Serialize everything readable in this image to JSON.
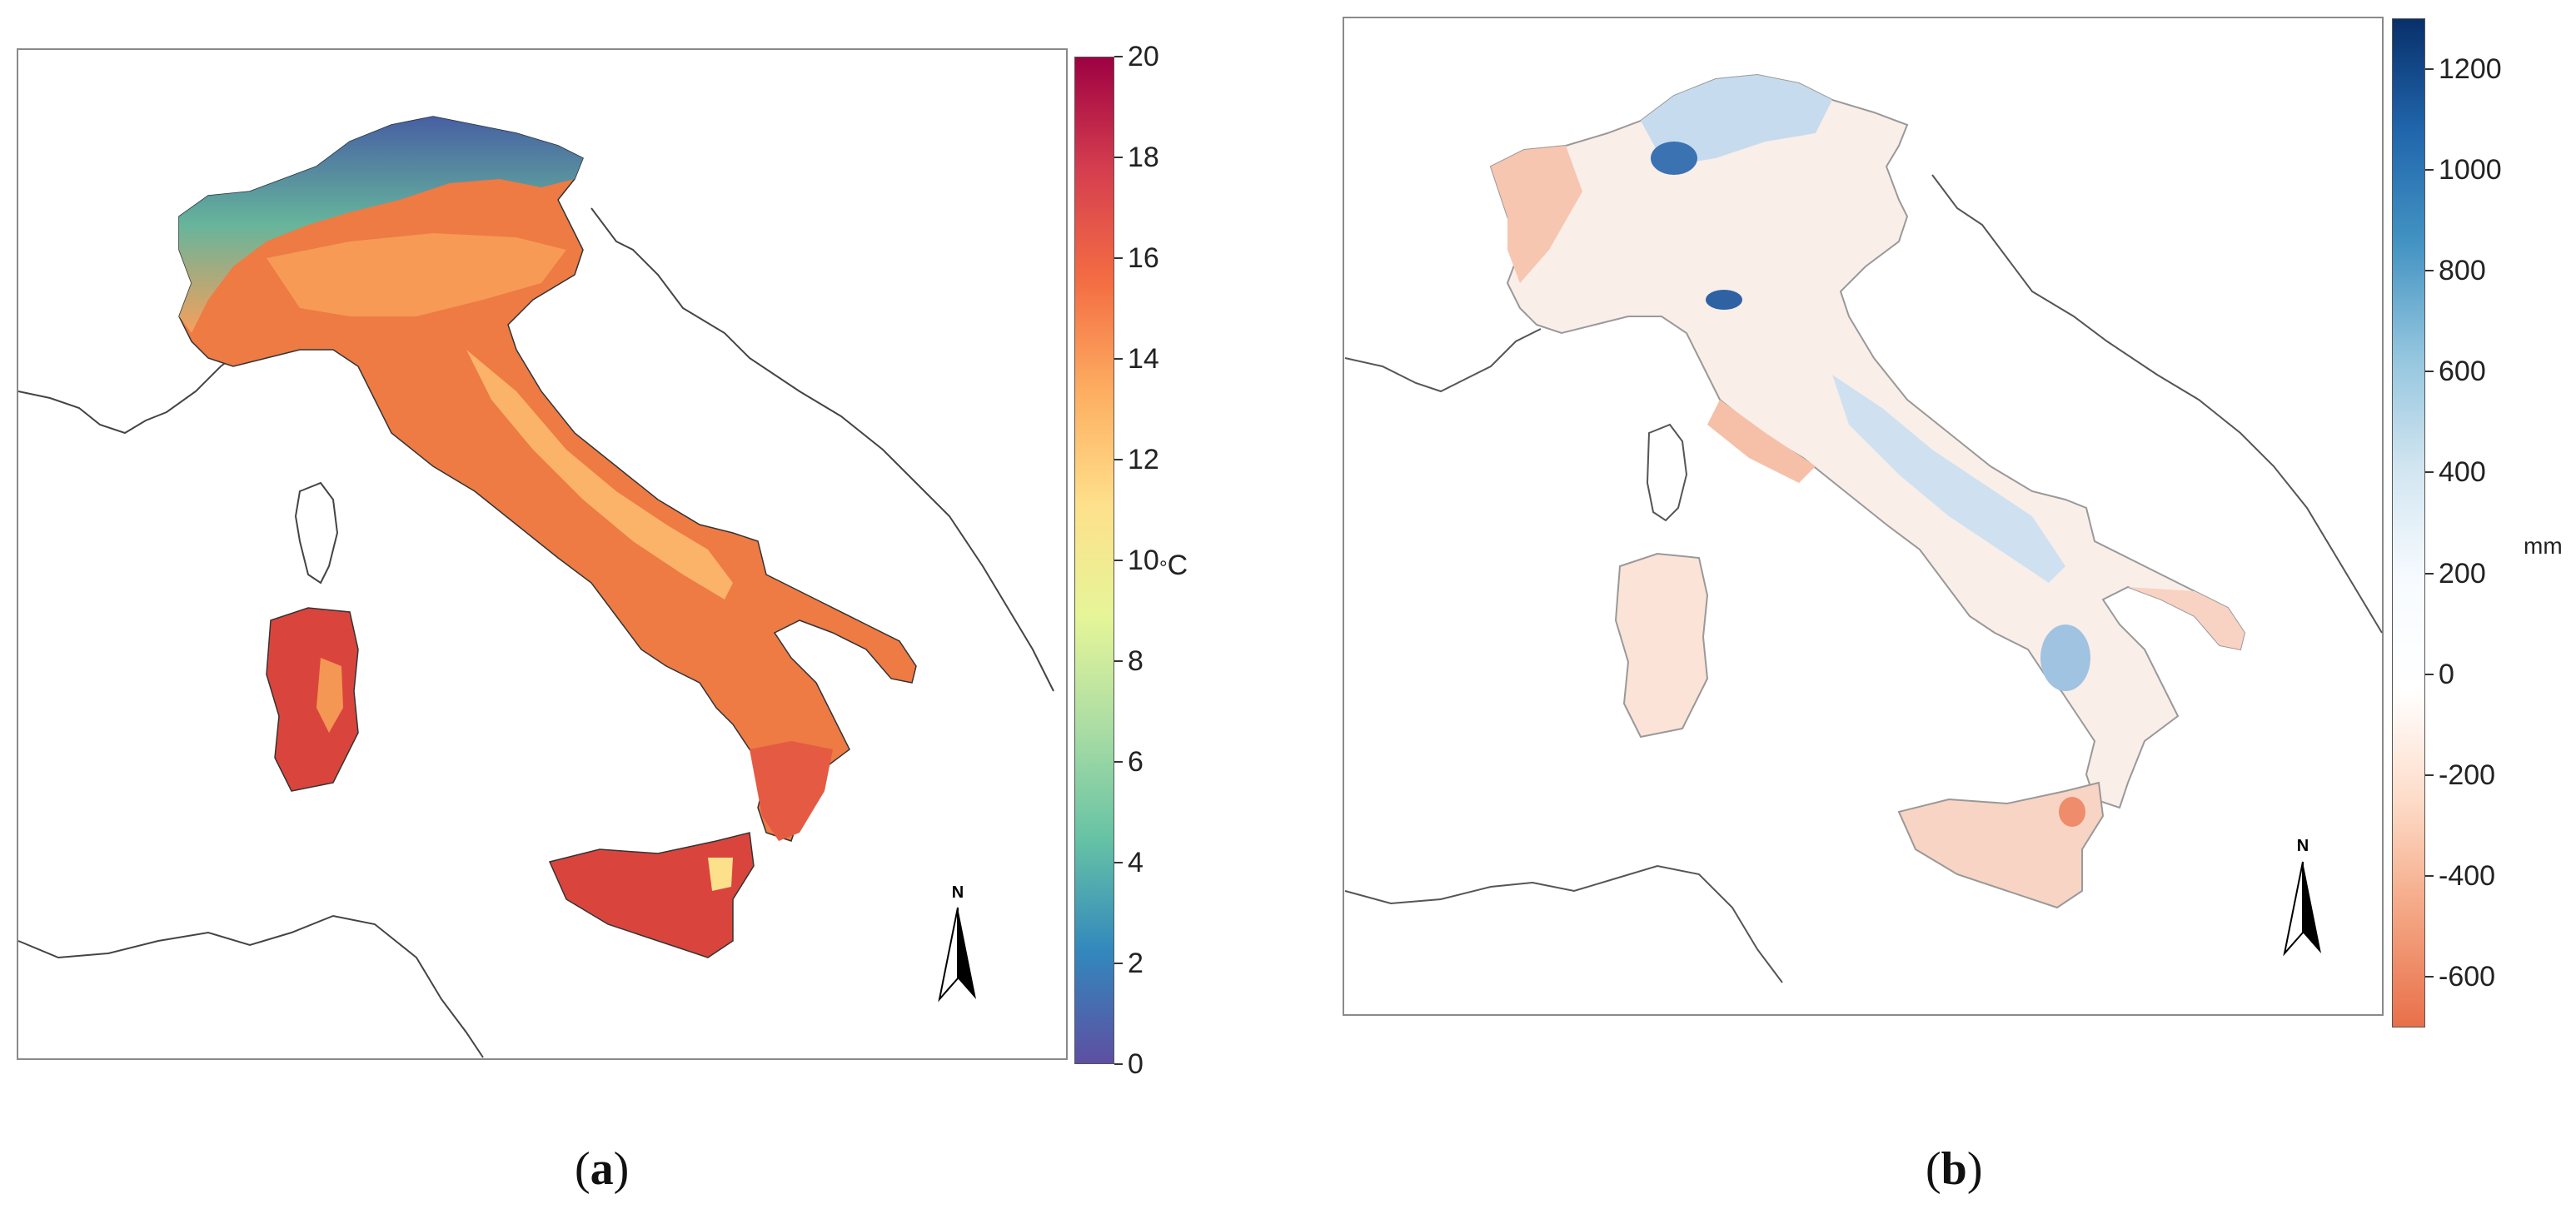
{
  "panels": [
    {
      "id": "a",
      "caption_open": "(",
      "caption_letter": "a",
      "caption_close": ")",
      "colorbar": {
        "unit_degree": "°",
        "unit_letter": "C",
        "ticks": [
          "20",
          "18",
          "16",
          "14",
          "12",
          "10",
          "8",
          "6",
          "4",
          "2",
          "0"
        ],
        "min": 0,
        "max": 20,
        "colors": [
          "#5e4fa2",
          "#3288bd",
          "#66c2a5",
          "#abdda4",
          "#e6f598",
          "#fee08b",
          "#fdae61",
          "#f46d43",
          "#d53e4f",
          "#9e0142"
        ]
      },
      "north_label": "N"
    },
    {
      "id": "b",
      "caption_open": "(",
      "caption_letter": "b",
      "caption_close": ")",
      "colorbar": {
        "unit": "mm",
        "ticks": [
          "1200",
          "1000",
          "800",
          "600",
          "400",
          "200",
          "0",
          "-200",
          "-400",
          "-600"
        ],
        "min": -700,
        "max": 1300,
        "colors": [
          "#e8704a",
          "#f4a582",
          "#fddbc7",
          "#ffffff",
          "#f7fbff",
          "#d1e5f0",
          "#92c5de",
          "#4393c3",
          "#2166ac",
          "#08306b"
        ]
      },
      "north_label": "N"
    }
  ]
}
